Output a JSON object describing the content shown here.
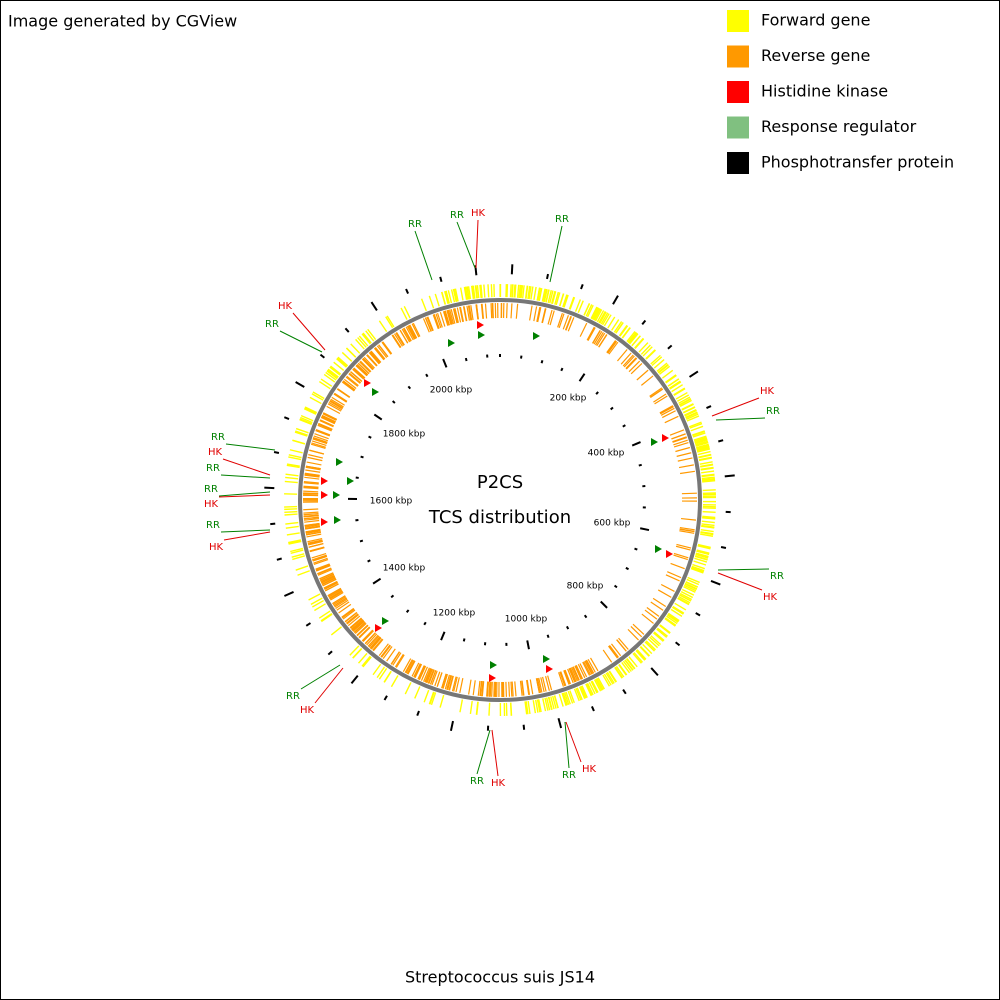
{
  "header": {
    "credit": "Image generated by CGView"
  },
  "legend": [
    {
      "label": "Forward gene",
      "color": "#ffff00"
    },
    {
      "label": "Reverse gene",
      "color": "#ff9900"
    },
    {
      "label": "Histidine kinase",
      "color": "#ff0000"
    },
    {
      "label": "Response regulator",
      "color": "#80c080"
    },
    {
      "label": "Phosphotransfer protein",
      "color": "#000000"
    }
  ],
  "center": {
    "title": "P2CS",
    "subtitle": "TCS distribution"
  },
  "ruler": [
    "200 kbp",
    "400 kbp",
    "600 kbp",
    "800 kbp",
    "1000 kbp",
    "1200 kbp",
    "1400 kbp",
    "1600 kbp",
    "1800 kbp",
    "2000 kbp"
  ],
  "annotations": [
    "RR",
    "RR",
    "HK",
    "RR",
    "HK",
    "RR",
    "HK",
    "RR",
    "RR",
    "HK",
    "RR",
    "RR",
    "HK",
    "RR",
    "HK",
    "RR",
    "HK",
    "RR",
    "HK",
    "RR",
    "HK",
    "RR",
    "HK"
  ],
  "footer": {
    "organism": "Streptococcus suis JS14"
  }
}
